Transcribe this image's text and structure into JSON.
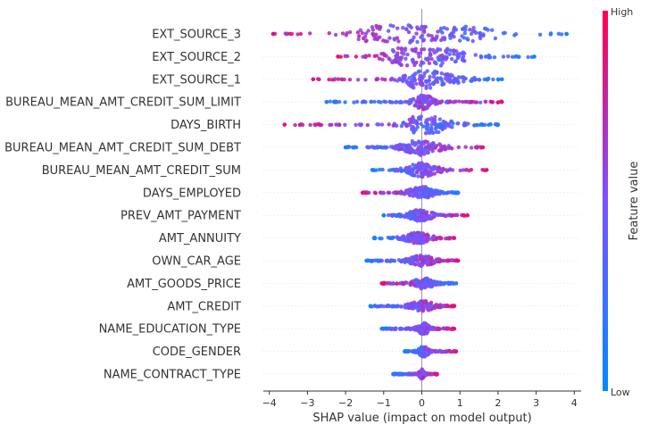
{
  "chart_data": {
    "type": "scatter",
    "subtype": "shap-beeswarm",
    "title": "",
    "xlabel": "SHAP value (impact on model output)",
    "ylabel": "",
    "xlim": [
      -4.2,
      4.3
    ],
    "xticks": [
      -4,
      -3,
      -2,
      -1,
      0,
      1,
      2,
      3,
      4
    ],
    "grid": false,
    "zero_line": true,
    "colors": {
      "low": "#008bfb",
      "mid": "#7c52ff",
      "high": "#ff0052"
    },
    "colorbar": {
      "label": "Feature value",
      "high_label": "High",
      "low_label": "Low"
    },
    "features": [
      {
        "name": "EXT_SOURCE_3",
        "min": -3.9,
        "max": 3.8,
        "peaks": [
          [
            -1.15,
            1.0,
            0.5
          ],
          [
            1.1,
            0.8,
            0.8
          ],
          [
            -0.2,
            0.55,
            0.3
          ]
        ],
        "color_dir": -1
      },
      {
        "name": "EXT_SOURCE_2",
        "min": -2.2,
        "max": 2.95,
        "peaks": [
          [
            -0.3,
            0.95,
            0.5
          ],
          [
            0.5,
            0.7,
            0.6
          ]
        ],
        "color_dir": -1
      },
      {
        "name": "EXT_SOURCE_1",
        "min": -2.85,
        "max": 2.1,
        "peaks": [
          [
            0.0,
            1.0,
            0.3
          ],
          [
            0.6,
            0.45,
            0.5
          ]
        ],
        "color_dir": -1
      },
      {
        "name": "BUREAU_MEAN_AMT_CREDIT_SUM_LIMIT",
        "min": -2.5,
        "max": 2.1,
        "peaks": [
          [
            0.05,
            0.8,
            0.2
          ]
        ],
        "color_dir": 1
      },
      {
        "name": "DAYS_BIRTH",
        "min": -3.6,
        "max": 2.0,
        "peaks": [
          [
            0.0,
            0.9,
            0.3
          ],
          [
            0.4,
            0.5,
            0.4
          ]
        ],
        "color_dir": -1
      },
      {
        "name": "BUREAU_MEAN_AMT_CREDIT_SUM_DEBT",
        "min": -2.0,
        "max": 1.6,
        "peaks": [
          [
            0.0,
            0.85,
            0.35
          ]
        ],
        "color_dir": 1
      },
      {
        "name": "BUREAU_MEAN_AMT_CREDIT_SUM",
        "min": -1.3,
        "max": 1.7,
        "peaks": [
          [
            0.0,
            0.75,
            0.3
          ]
        ],
        "color_dir": 1
      },
      {
        "name": "DAYS_EMPLOYED",
        "min": -1.55,
        "max": 0.95,
        "peaks": [
          [
            0.0,
            0.65,
            0.25
          ]
        ],
        "color_dir": -1
      },
      {
        "name": "PREV_AMT_PAYMENT",
        "min": -1.0,
        "max": 1.2,
        "peaks": [
          [
            -0.05,
            0.6,
            0.25
          ]
        ],
        "color_dir": 1
      },
      {
        "name": "AMT_ANNUITY",
        "min": -1.25,
        "max": 0.85,
        "peaks": [
          [
            -0.1,
            0.6,
            0.25
          ]
        ],
        "color_dir": 1
      },
      {
        "name": "OWN_CAR_AGE",
        "min": -1.45,
        "max": 0.95,
        "peaks": [
          [
            0.0,
            0.55,
            0.25
          ]
        ],
        "color_dir": 1
      },
      {
        "name": "AMT_GOODS_PRICE",
        "min": -1.05,
        "max": 0.9,
        "peaks": [
          [
            0.05,
            0.55,
            0.2
          ]
        ],
        "color_dir": -1
      },
      {
        "name": "AMT_CREDIT",
        "min": -1.35,
        "max": 0.85,
        "peaks": [
          [
            0.0,
            0.55,
            0.25
          ]
        ],
        "color_dir": 1
      },
      {
        "name": "NAME_EDUCATION_TYPE",
        "min": -1.05,
        "max": 0.85,
        "peaks": [
          [
            0.05,
            0.6,
            0.12
          ]
        ],
        "color_dir": 1
      },
      {
        "name": "CODE_GENDER",
        "min": -0.45,
        "max": 0.9,
        "peaks": [
          [
            0.05,
            0.55,
            0.1
          ]
        ],
        "color_dir": 1
      },
      {
        "name": "NAME_CONTRACT_TYPE",
        "min": -0.75,
        "max": 0.4,
        "peaks": [
          [
            0.0,
            0.5,
            0.05
          ]
        ],
        "color_dir": 1
      }
    ]
  }
}
